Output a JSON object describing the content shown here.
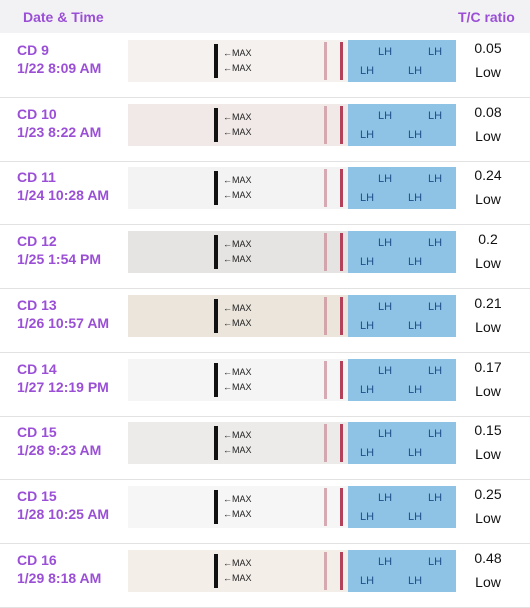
{
  "header": {
    "date_time": "Date & Time",
    "ratio": "T/C ratio"
  },
  "strip": {
    "marker": "←MAX",
    "brand": "LH"
  },
  "rows": [
    {
      "cycle_day": "CD 9",
      "date_time": "1/22 8:09 AM",
      "ratio": "0.05",
      "level": "Low"
    },
    {
      "cycle_day": "CD 10",
      "date_time": "1/23 8:22 AM",
      "ratio": "0.08",
      "level": "Low"
    },
    {
      "cycle_day": "CD 11",
      "date_time": "1/24 10:28 AM",
      "ratio": "0.24",
      "level": "Low"
    },
    {
      "cycle_day": "CD 12",
      "date_time": "1/25 1:54 PM",
      "ratio": "0.2",
      "level": "Low"
    },
    {
      "cycle_day": "CD 13",
      "date_time": "1/26 10:57 AM",
      "ratio": "0.21",
      "level": "Low"
    },
    {
      "cycle_day": "CD 14",
      "date_time": "1/27 12:19 PM",
      "ratio": "0.17",
      "level": "Low"
    },
    {
      "cycle_day": "CD 15",
      "date_time": "1/28 9:23 AM",
      "ratio": "0.15",
      "level": "Low"
    },
    {
      "cycle_day": "CD 15",
      "date_time": "1/28 10:25 AM",
      "ratio": "0.25",
      "level": "Low"
    },
    {
      "cycle_day": "CD 16",
      "date_time": "1/29 8:18 AM",
      "ratio": "0.48",
      "level": "Low"
    }
  ]
}
